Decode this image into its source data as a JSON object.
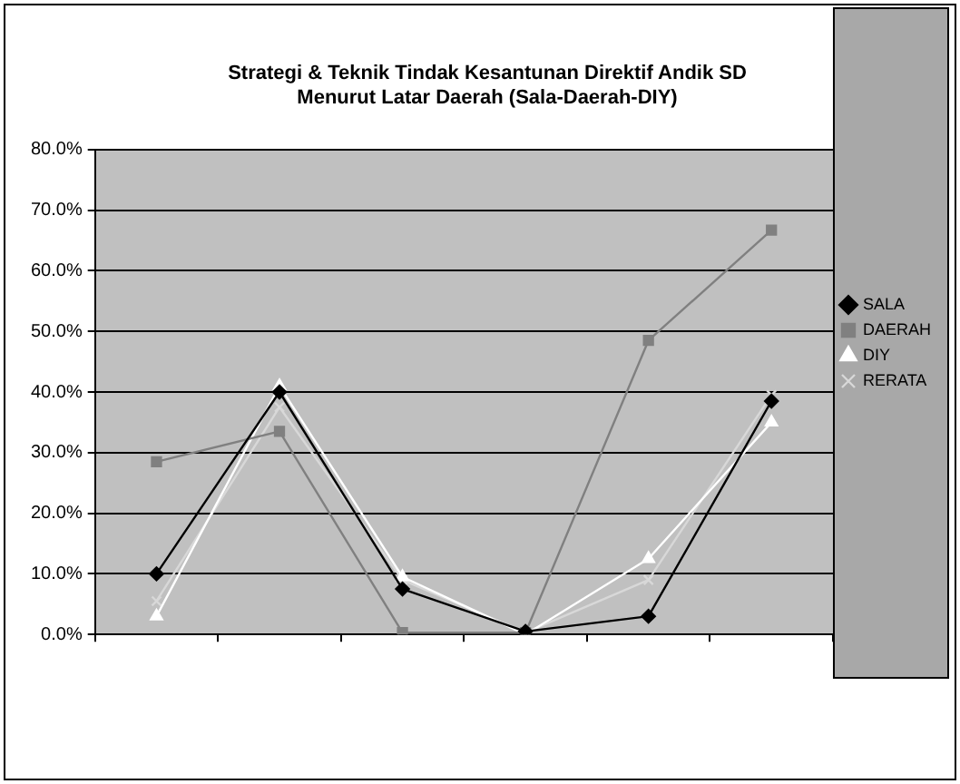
{
  "chart_data": {
    "type": "line",
    "title": "Strategi & Teknik Tindak Kesantunan Direktif Andik SD\nMenurut Latar Daerah (Sala-Daerah-DIY)",
    "categories": [
      null,
      null,
      null,
      null,
      null,
      null
    ],
    "series": [
      {
        "name": "SALA",
        "color": "#000000",
        "marker": "diamond",
        "values": [
          10,
          40,
          7.5,
          0.5,
          3,
          38.5
        ]
      },
      {
        "name": "DAERAH",
        "color": "#808080",
        "marker": "square",
        "values": [
          28.5,
          33.5,
          0.3,
          0.3,
          48.5,
          66.7
        ]
      },
      {
        "name": "DIY",
        "color": "#ffffff",
        "marker": "triangle",
        "values": [
          3,
          41,
          9.5,
          0,
          12.5,
          35
        ]
      },
      {
        "name": "RERATA",
        "color": "#d8d8d8",
        "marker": "cross",
        "values": [
          5.5,
          37.5,
          9,
          0.3,
          9,
          39.5
        ]
      }
    ],
    "ylim": [
      0,
      80
    ],
    "yticks": [
      {
        "value": 0,
        "label": "0.0%"
      },
      {
        "value": 10,
        "label": "10.0%"
      },
      {
        "value": 20,
        "label": "20.0%"
      },
      {
        "value": 30,
        "label": "30.0%"
      },
      {
        "value": 40,
        "label": "40.0%"
      },
      {
        "value": 50,
        "label": "50.0%"
      },
      {
        "value": 60,
        "label": "60.0%"
      },
      {
        "value": 70,
        "label": "70.0%"
      },
      {
        "value": 80,
        "label": "80.0%"
      }
    ],
    "grid": "y",
    "legend": "right",
    "line_style": "solid"
  }
}
